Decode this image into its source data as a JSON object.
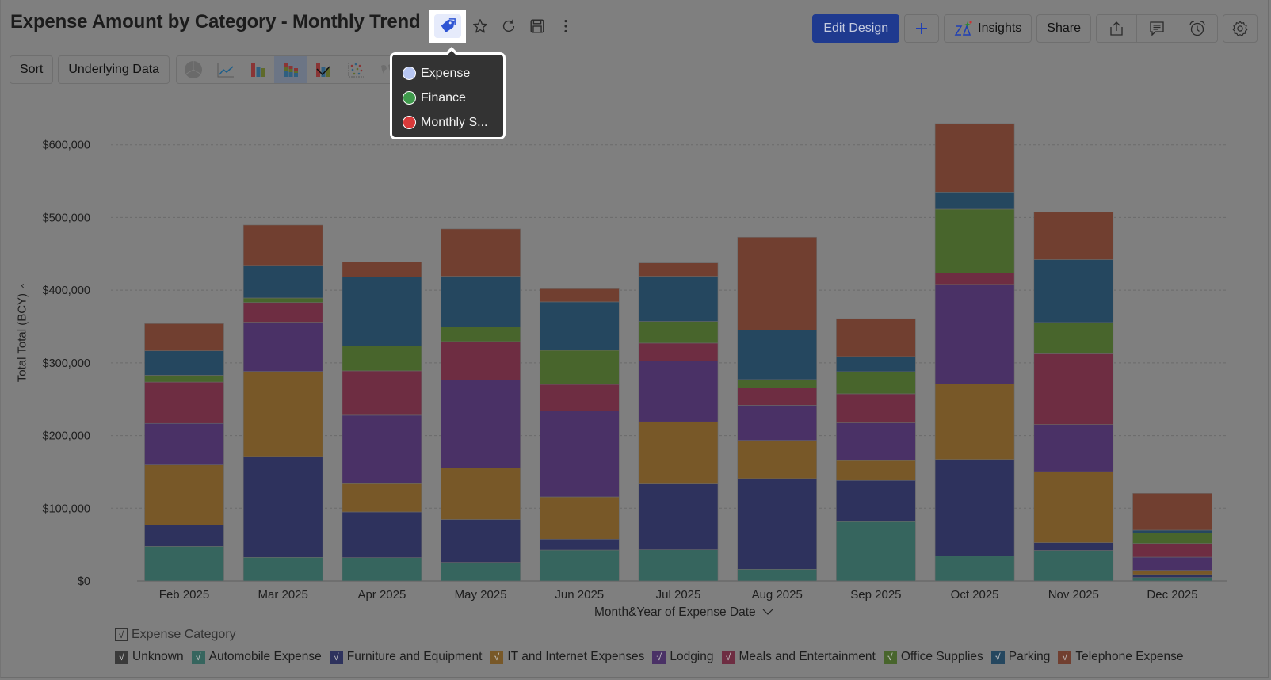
{
  "header": {
    "title": "Expense Amount by Category - Monthly Trend",
    "title_icons": [
      "tag-icon",
      "star-icon",
      "refresh-icon",
      "save-icon",
      "more-vertical-icon"
    ],
    "edit_design_label": "Edit Design",
    "add_label": "+",
    "insights_label": "Insights",
    "share_label": "Share",
    "right_icons": [
      "export-icon",
      "comment-icon",
      "alarm-icon",
      "settings-icon"
    ]
  },
  "toolbar": {
    "sort_label": "Sort",
    "underlying_data_label": "Underlying Data",
    "chart_types": [
      "pie",
      "line",
      "bar",
      "stacked-bar",
      "combo",
      "scatter",
      "map"
    ],
    "active_chart_type": "stacked-bar"
  },
  "tag_popup": {
    "items": [
      {
        "label": "Expense",
        "color": "#b7c6f2"
      },
      {
        "label": "Finance",
        "color": "#3f9a4c"
      },
      {
        "label": "Monthly S...",
        "color": "#d93a3a"
      }
    ]
  },
  "legend": {
    "title": "Expense Category",
    "title_checked": true
  },
  "chart_data": {
    "type": "bar",
    "stacked": true,
    "title": "Expense Amount by Category - Monthly Trend",
    "xlabel": "Month&Year of Expense Date",
    "ylabel": "Total Total (BCY)",
    "ylim": [
      0,
      600000
    ],
    "yticks": [
      0,
      100000,
      200000,
      300000,
      400000,
      500000,
      600000
    ],
    "ytick_labels": [
      "$0",
      "$100,000",
      "$200,000",
      "$300,000",
      "$400,000",
      "$500,000",
      "$600,000"
    ],
    "grid": true,
    "legend_position": "bottom-left",
    "categories": [
      "Feb 2025",
      "Mar 2025",
      "Apr 2025",
      "May 2025",
      "Jun 2025",
      "Jul 2025",
      "Aug 2025",
      "Sep 2025",
      "Oct 2025",
      "Nov 2025",
      "Dec 2025"
    ],
    "series": [
      {
        "name": "Unknown",
        "color": "#3a3a3a",
        "values": [
          0,
          0,
          0,
          0,
          0,
          0,
          0,
          0,
          0,
          0,
          0
        ]
      },
      {
        "name": "Automobile Expense",
        "color": "#36655e",
        "values": [
          47600,
          32400,
          32000,
          25500,
          42500,
          42900,
          16000,
          81500,
          34100,
          42000,
          4700
        ]
      },
      {
        "name": "Furniture and Equipment",
        "color": "#2e325d",
        "values": [
          29100,
          138800,
          62900,
          59000,
          15000,
          90500,
          124700,
          56700,
          133000,
          10700,
          4000
        ]
      },
      {
        "name": "IT and Internet Expenses",
        "color": "#785828",
        "values": [
          82800,
          117000,
          38900,
          70900,
          58100,
          85500,
          52600,
          27300,
          104100,
          97600,
          5800
        ]
      },
      {
        "name": "Lodging",
        "color": "#4a3166",
        "values": [
          57200,
          67700,
          94200,
          121200,
          118100,
          83600,
          48300,
          51900,
          136700,
          64900,
          18200
        ]
      },
      {
        "name": "Meals and Entertainment",
        "color": "#6e2d42",
        "values": [
          56900,
          27100,
          61000,
          52700,
          36700,
          24700,
          24000,
          40000,
          15900,
          97300,
          18900
        ]
      },
      {
        "name": "Office Supplies",
        "color": "#48652c",
        "values": [
          9400,
          6300,
          34400,
          20300,
          46900,
          29800,
          11400,
          30500,
          87600,
          43000,
          14600
        ]
      },
      {
        "name": "Parking",
        "color": "#25475f",
        "values": [
          33500,
          44800,
          94600,
          69500,
          66600,
          62100,
          68000,
          20700,
          23600,
          86600,
          3600
        ]
      },
      {
        "name": "Telephone Expense",
        "color": "#713f30",
        "values": [
          37500,
          55500,
          20700,
          65100,
          18100,
          18500,
          127900,
          52100,
          94100,
          65200,
          50900
        ]
      }
    ]
  }
}
